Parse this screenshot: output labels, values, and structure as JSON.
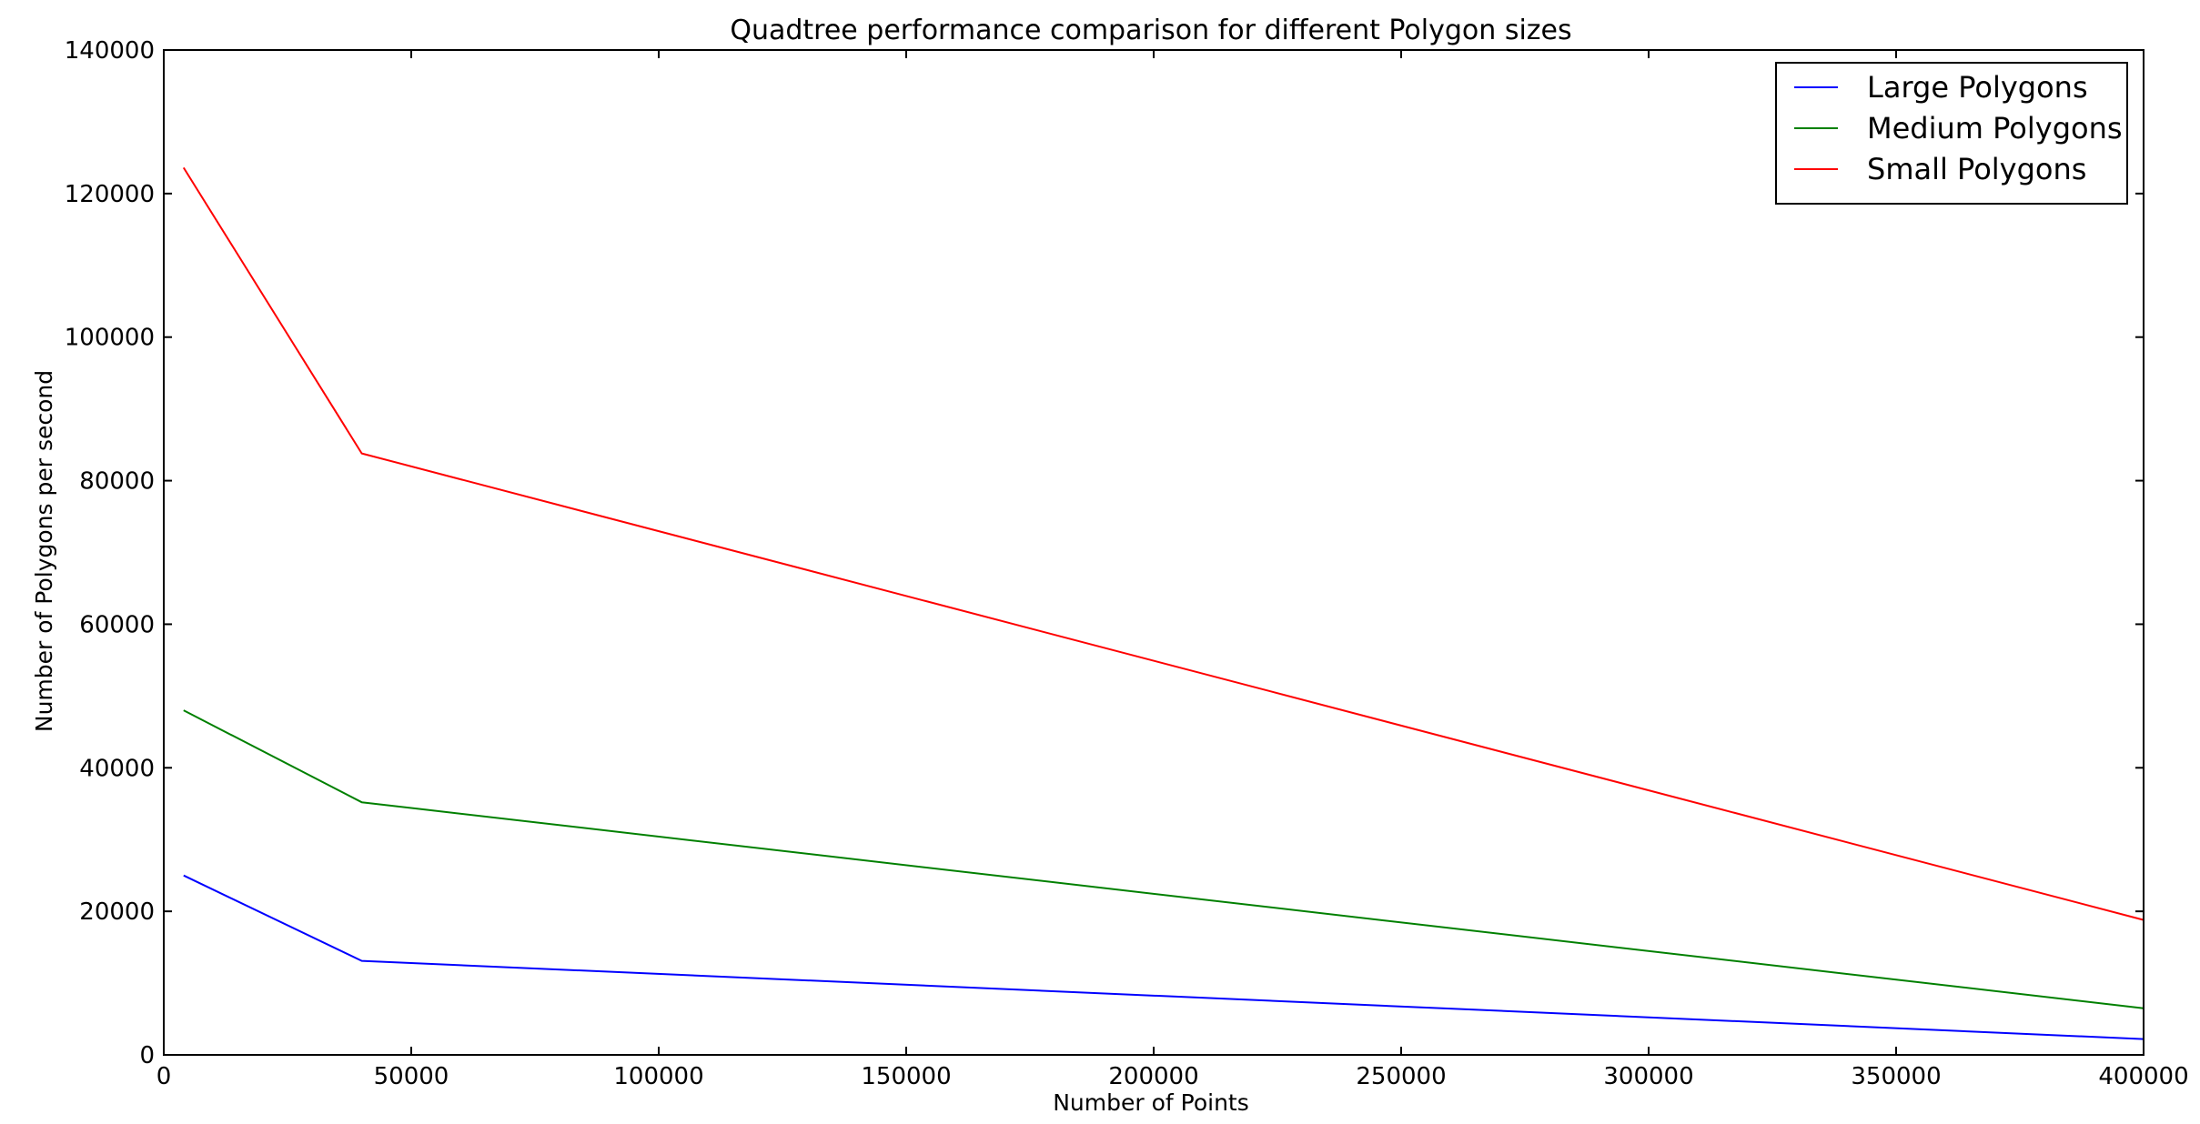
{
  "chart_data": {
    "type": "line",
    "title": "Quadtree performance comparison for different Polygon sizes",
    "xlabel": "Number of Points",
    "ylabel": "Number of Polygons per second",
    "x": [
      4000,
      40000,
      400000
    ],
    "xlim": [
      0,
      400000
    ],
    "ylim": [
      0,
      140000
    ],
    "xticks": [
      0,
      50000,
      100000,
      150000,
      200000,
      250000,
      300000,
      350000,
      400000
    ],
    "yticks": [
      0,
      20000,
      40000,
      60000,
      80000,
      100000,
      120000,
      140000
    ],
    "xtick_labels": [
      "0",
      "50000",
      "100000",
      "150000",
      "200000",
      "250000",
      "300000",
      "350000",
      "400000"
    ],
    "ytick_labels": [
      "0",
      "20000",
      "40000",
      "60000",
      "80000",
      "100000",
      "120000",
      "140000"
    ],
    "grid": false,
    "legend_position": "top-right",
    "series": [
      {
        "name": "Large Polygons",
        "color": "#0000ff",
        "values": [
          25000,
          13100,
          2200
        ]
      },
      {
        "name": "Medium Polygons",
        "color": "#008000",
        "values": [
          48000,
          35200,
          6500
        ]
      },
      {
        "name": "Small Polygons",
        "color": "#ff0000",
        "values": [
          123600,
          83800,
          18800
        ]
      }
    ]
  }
}
